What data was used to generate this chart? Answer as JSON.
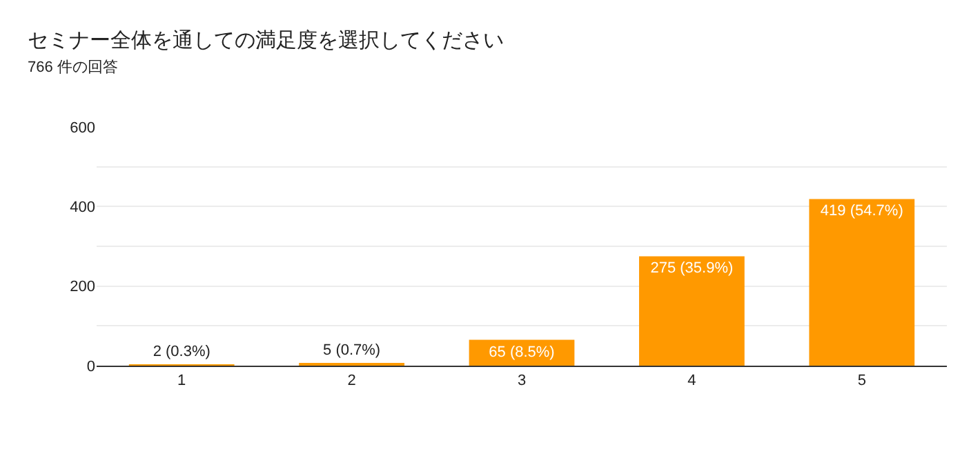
{
  "chart_data": {
    "type": "bar",
    "title": "セミナー全体を通しての満足度を選択してください",
    "subtitle": "766 件の回答",
    "categories": [
      "1",
      "2",
      "3",
      "4",
      "5"
    ],
    "values": [
      2,
      5,
      65,
      275,
      419
    ],
    "value_labels": [
      "2 (0.3%)",
      "5 (0.7%)",
      "65 (8.5%)",
      "275 (35.9%)",
      "419 (54.7%)"
    ],
    "color": "#ff9900",
    "ylim": [
      0,
      600
    ],
    "yticks": [
      0,
      {
        "value": 100,
        "label": null
      },
      200,
      {
        "value": 300,
        "label": null
      },
      400,
      {
        "value": 500,
        "label": null
      },
      600
    ],
    "grid": "y",
    "legend": false
  }
}
